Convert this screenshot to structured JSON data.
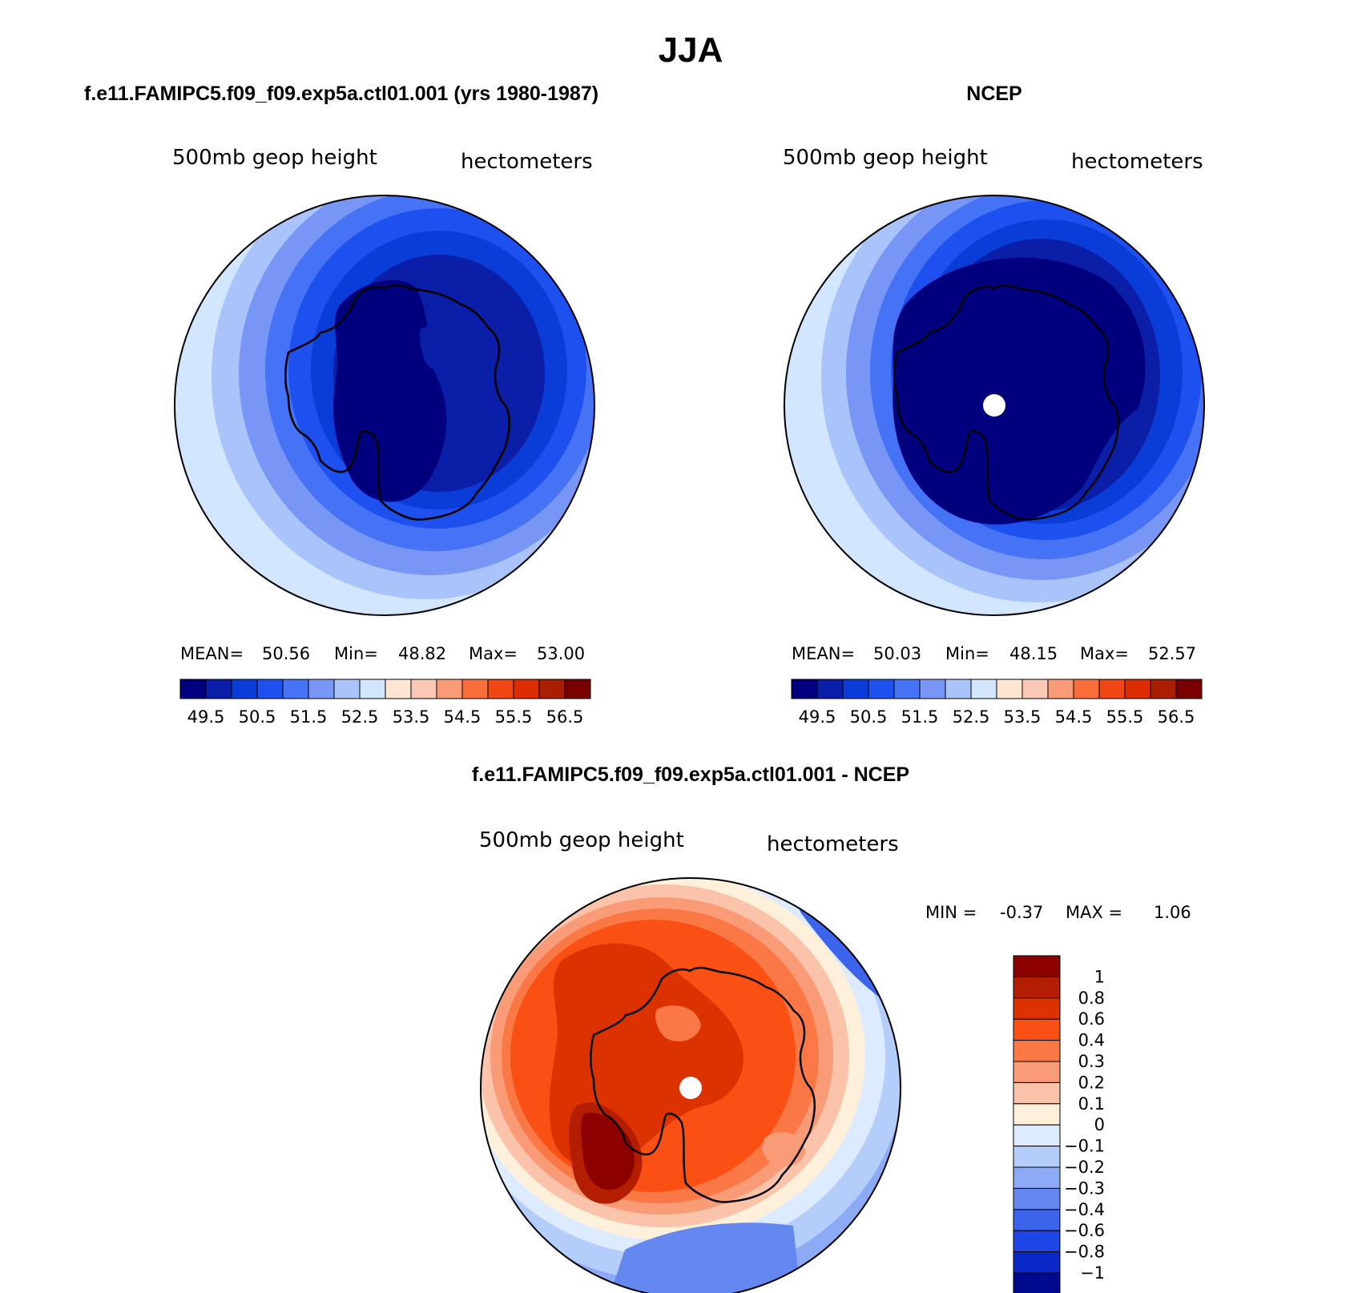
{
  "figure_title": "JJA",
  "panels": [
    {
      "title": "f.e11.FAMIPC5.f09_f09.exp5a.ctl01.001 (yrs 1980-1987)",
      "left_label": "500mb geop height",
      "right_label": "hectometers",
      "stats": {
        "mean_label": "MEAN=",
        "mean": "50.56",
        "min_label": "Min=",
        "min": "48.82",
        "max_label": "Max=",
        "max": "53.00"
      },
      "has_pole_hole": false
    },
    {
      "title": "NCEP",
      "left_label": "500mb geop height",
      "right_label": "hectometers",
      "stats": {
        "mean_label": "MEAN=",
        "mean": "50.03",
        "min_label": "Min=",
        "min": "48.15",
        "max_label": "Max=",
        "max": "52.57"
      },
      "has_pole_hole": true
    }
  ],
  "abs_colorbar": {
    "colors": [
      "#00007f",
      "#0a1ea8",
      "#0a3cd7",
      "#1e50f0",
      "#4673f5",
      "#7896f5",
      "#aac3fa",
      "#d2e6ff",
      "#ffe6d2",
      "#fac8b4",
      "#fa9b78",
      "#fa6e3c",
      "#f04614",
      "#dc2d00",
      "#aa1e00",
      "#780000"
    ],
    "tick_labels": [
      "49.5",
      "50.5",
      "51.5",
      "52.5",
      "53.5",
      "54.5",
      "55.5",
      "56.5"
    ]
  },
  "diff_panel": {
    "title": "f.e11.FAMIPC5.f09_f09.exp5a.ctl01.001 - NCEP",
    "left_label": "500mb geop height",
    "right_label": "hectometers",
    "stats": {
      "min_label": "MIN =",
      "min": "-0.37",
      "max_label": "MAX =",
      "max": "1.06"
    },
    "colorbar": {
      "colors_top_to_bottom": [
        "#8c0000",
        "#b41e00",
        "#dc3200",
        "#fa5014",
        "#fa7846",
        "#fa9b78",
        "#fac3aa",
        "#fff0dc",
        "#dcebff",
        "#b4cdfa",
        "#8caaf5",
        "#6487f0",
        "#3c64eb",
        "#1e46e6",
        "#0a28c8",
        "#000a8c"
      ],
      "labels": [
        "1",
        "0.8",
        "0.6",
        "0.4",
        "0.3",
        "0.2",
        "0.1",
        "0",
        "-0.1",
        "-0.2",
        "-0.3",
        "-0.4",
        "-0.6",
        "-0.8",
        "-1"
      ]
    }
  },
  "map_colors": {
    "abs_levels": [
      "#00007f",
      "#0a1ea8",
      "#0a3cd7",
      "#1e50f0",
      "#4673f5",
      "#7896f5",
      "#aac3fa",
      "#d2e6ff"
    ],
    "coastline": "#000000",
    "pole_hole": "#ffffff"
  }
}
